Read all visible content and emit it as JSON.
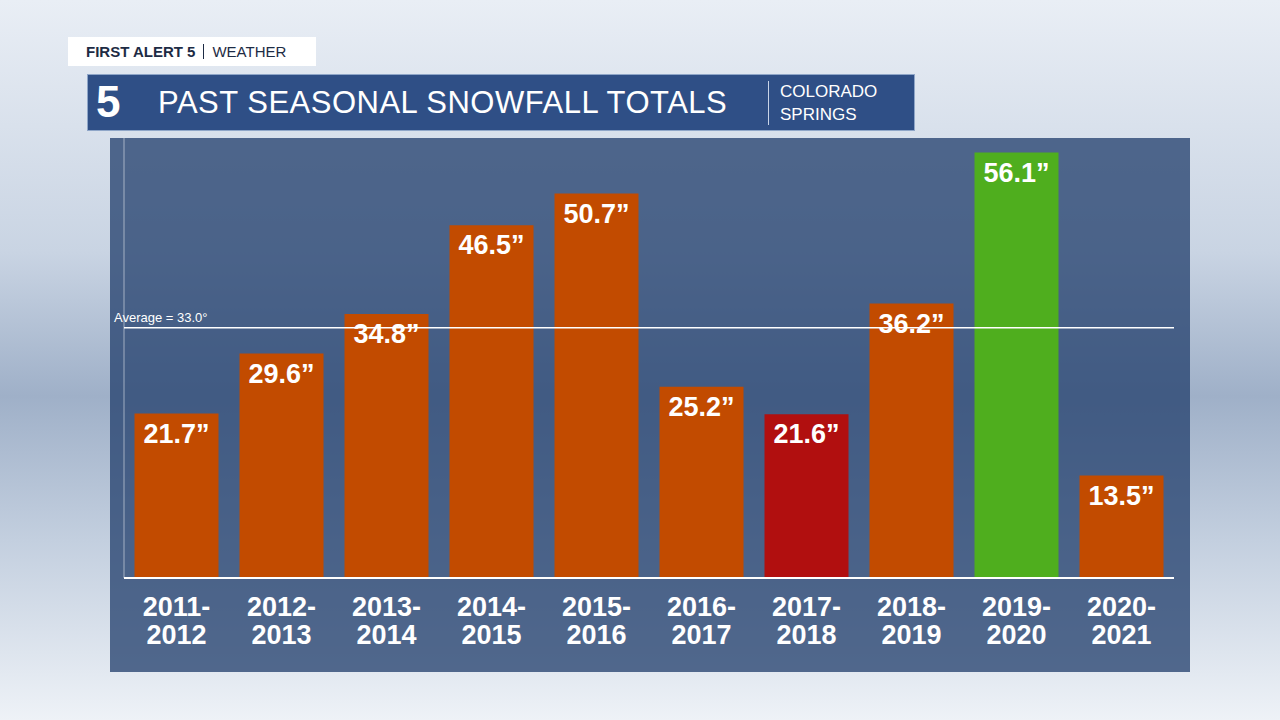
{
  "chart_data": {
    "type": "bar",
    "header": [
      "FIRST ALERT 5",
      "WEATHER"
    ],
    "logo": "5",
    "title": "PAST SEASONAL SNOWFALL TOTALS",
    "subtitle": "COLORADO SPRINGS",
    "categories": [
      "2011-2012",
      "2012-2013",
      "2013-2014",
      "2014-2015",
      "2015-2016",
      "2016-2017",
      "2017-2018",
      "2018-2019",
      "2019-2020",
      "2020-2021"
    ],
    "values": [
      21.7,
      29.6,
      34.8,
      46.5,
      50.7,
      25.2,
      21.6,
      36.2,
      56.1,
      13.5
    ],
    "value_labels": [
      "21.7”",
      "29.6”",
      "34.8”",
      "46.5”",
      "50.7”",
      "25.2”",
      "21.6”",
      "36.2”",
      "56.1”",
      "13.5”"
    ],
    "colors": [
      "#c24b00",
      "#c24b00",
      "#c24b00",
      "#c24b00",
      "#c24b00",
      "#c24b00",
      "#b10f0f",
      "#c24b00",
      "#4fae1e",
      "#c24b00"
    ],
    "ylim": [
      0,
      58
    ],
    "tick_labels": false,
    "data_labels": true,
    "grid": false,
    "annotations": [
      {
        "y": 33.0,
        "text": "Average = 33.0°"
      }
    ]
  }
}
